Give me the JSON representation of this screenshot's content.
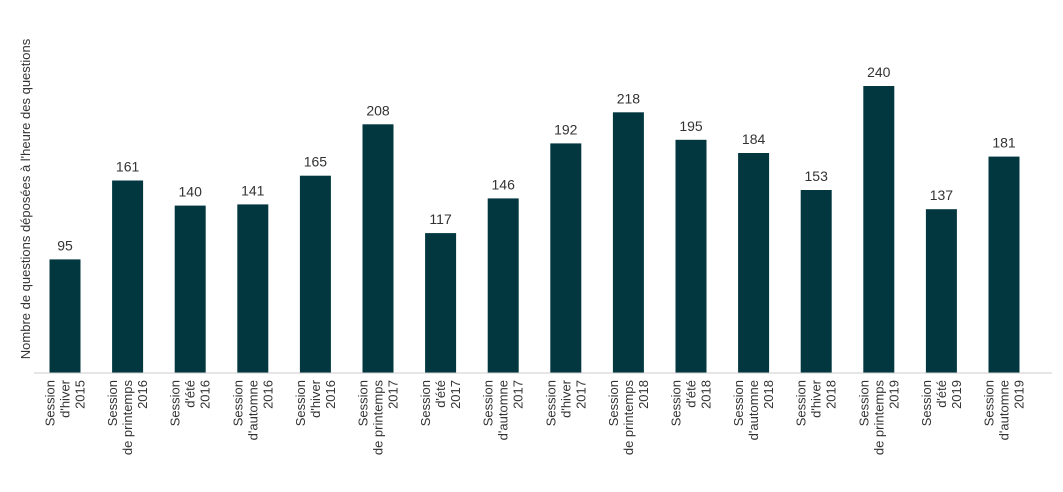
{
  "chart_data": {
    "type": "bar",
    "ylabel": "Nombre de questions déposées à l'heure des questions",
    "xlabel": "",
    "title": "",
    "categories": [
      [
        "Session",
        "d'hiver",
        "2015"
      ],
      [
        "Session",
        "de printemps",
        "2016"
      ],
      [
        "Session",
        "d'été",
        "2016"
      ],
      [
        "Session",
        "d'automne",
        "2016"
      ],
      [
        "Session",
        "d'hiver",
        "2016"
      ],
      [
        "Session",
        "de printemps",
        "2017"
      ],
      [
        "Session",
        "d'été",
        "2017"
      ],
      [
        "Session",
        "d'automne",
        "2017"
      ],
      [
        "Session",
        "d'hiver",
        "2017"
      ],
      [
        "Session",
        "de printemps",
        "2018"
      ],
      [
        "Session",
        "d'été",
        "2018"
      ],
      [
        "Session",
        "d'automne",
        "2018"
      ],
      [
        "Session",
        "d'hiver",
        "2018"
      ],
      [
        "Session",
        "de printemps",
        "2019"
      ],
      [
        "Session",
        "d'été",
        "2019"
      ],
      [
        "Session",
        "d'automne",
        "2019"
      ]
    ],
    "values": [
      95,
      161,
      140,
      141,
      165,
      208,
      117,
      146,
      192,
      218,
      195,
      184,
      153,
      240,
      137,
      181
    ],
    "ylim": [
      0,
      250
    ],
    "grid": false,
    "bar_color": "#023740",
    "axis_color": "#cccccc"
  }
}
